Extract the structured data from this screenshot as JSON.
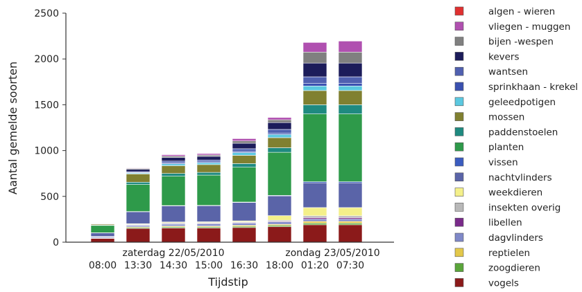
{
  "chart_data": {
    "type": "bar",
    "stacked": true,
    "xlabel": "Tijdstip",
    "ylabel": "Aantal gemelde soorten",
    "ylim": [
      0,
      2500
    ],
    "yticks": [
      0,
      500,
      1000,
      1500,
      2000,
      2500
    ],
    "categories": [
      "08:00",
      "13:30",
      "14:30",
      "15:00",
      "16:30",
      "18:00",
      "01:20",
      "07:30"
    ],
    "day_labels": [
      {
        "text": "zaterdag 22/05/2010",
        "between": [
          1,
          3
        ]
      },
      {
        "text": "zondag 23/05/2010",
        "between": [
          6,
          7
        ]
      }
    ],
    "legend_position": "right",
    "series": [
      {
        "name": "vogels",
        "color": "#8b1a1a",
        "values": [
          40,
          150,
          155,
          155,
          160,
          170,
          190,
          190
        ]
      },
      {
        "name": "zoogdieren",
        "color": "#5aa53a",
        "values": [
          3,
          10,
          12,
          12,
          13,
          14,
          18,
          18
        ]
      },
      {
        "name": "reptielen",
        "color": "#e3c84a",
        "values": [
          2,
          8,
          10,
          10,
          12,
          12,
          20,
          20
        ]
      },
      {
        "name": "dagvlinders",
        "color": "#7f88c8",
        "values": [
          10,
          15,
          20,
          22,
          22,
          25,
          25,
          25
        ]
      },
      {
        "name": "libellen",
        "color": "#7a2a8a",
        "values": [
          2,
          5,
          6,
          6,
          6,
          7,
          15,
          15
        ]
      },
      {
        "name": "insekten overig",
        "color": "#b8b8b8",
        "values": [
          3,
          8,
          10,
          10,
          10,
          12,
          20,
          20
        ]
      },
      {
        "name": "weekdieren",
        "color": "#f4f08a",
        "values": [
          2,
          6,
          8,
          8,
          10,
          50,
          90,
          90
        ]
      },
      {
        "name": "nachtvlinders",
        "color": "#5a64a8",
        "values": [
          40,
          130,
          175,
          175,
          200,
          215,
          270,
          270
        ]
      },
      {
        "name": "vissen",
        "color": "#3a5cc0",
        "values": [
          1,
          3,
          4,
          4,
          5,
          6,
          12,
          12
        ]
      },
      {
        "name": "planten",
        "color": "#2e9a4a",
        "values": [
          80,
          295,
          320,
          330,
          380,
          470,
          740,
          740
        ]
      },
      {
        "name": "paddenstoelen",
        "color": "#1f8a80",
        "values": [
          5,
          25,
          30,
          30,
          40,
          50,
          100,
          100
        ]
      },
      {
        "name": "mossen",
        "color": "#808030",
        "values": [
          10,
          90,
          85,
          85,
          90,
          110,
          155,
          155
        ]
      },
      {
        "name": "geleedpotigen",
        "color": "#5bc8e0",
        "values": [
          3,
          10,
          20,
          20,
          30,
          35,
          50,
          50
        ]
      },
      {
        "name": "sprinkhaan - krekel",
        "color": "#3a50b0",
        "values": [
          2,
          5,
          10,
          10,
          12,
          15,
          30,
          30
        ]
      },
      {
        "name": "wantsen",
        "color": "#5060b0",
        "values": [
          3,
          10,
          20,
          20,
          30,
          40,
          70,
          70
        ]
      },
      {
        "name": "kevers",
        "color": "#1c1c5a",
        "values": [
          5,
          25,
          40,
          40,
          60,
          75,
          150,
          150
        ]
      },
      {
        "name": "bijen -wespen",
        "color": "#808080",
        "values": [
          2,
          10,
          15,
          15,
          25,
          30,
          120,
          120
        ]
      },
      {
        "name": "vliegen - muggen",
        "color": "#b050b0",
        "values": [
          2,
          6,
          15,
          15,
          25,
          25,
          105,
          120
        ]
      },
      {
        "name": "algen - wieren",
        "color": "#e03030",
        "values": [
          0,
          0,
          0,
          0,
          0,
          0,
          0,
          0
        ]
      }
    ]
  }
}
